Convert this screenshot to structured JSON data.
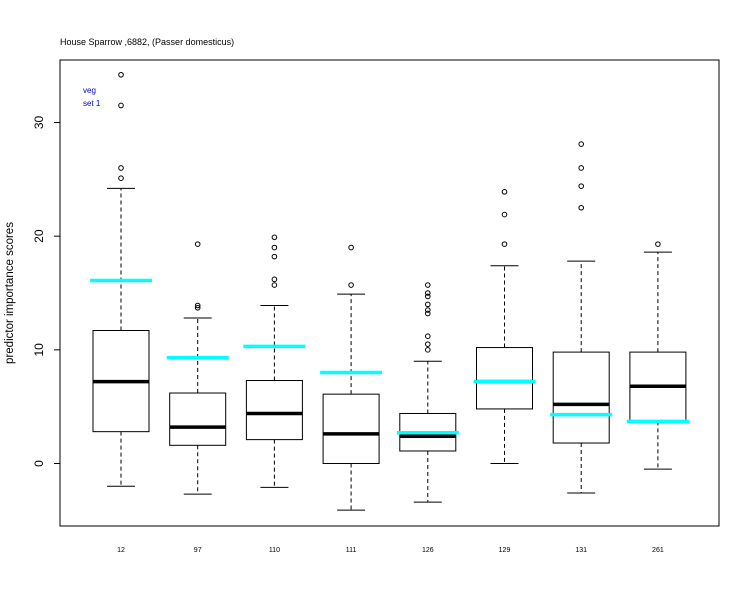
{
  "chart_data": {
    "type": "boxplot",
    "title": "House Sparrow ,6882, (Passer domesticus)",
    "xlabel": "",
    "ylabel": "predictor importance scores",
    "ylim": [
      -5.5,
      35.5
    ],
    "yticks": [
      0,
      10,
      20,
      30
    ],
    "legend": {
      "placement": "top-left",
      "lines": [
        "veg",
        "set 1"
      ],
      "color": "#0000cc"
    },
    "colors": {
      "median": "#000000",
      "reference": "#00ffff",
      "box": "#000000"
    },
    "categories": [
      "12",
      "97",
      "110",
      "111",
      "126",
      "129",
      "131",
      "261"
    ],
    "boxes": [
      {
        "label": "12",
        "whisker_low": -2.0,
        "q1": 2.8,
        "median": 7.2,
        "q3": 11.7,
        "whisker_high": 24.2,
        "outliers": [
          25.1,
          26.0,
          31.5,
          34.2
        ],
        "reference": 16.1
      },
      {
        "label": "97",
        "whisker_low": -2.7,
        "q1": 1.6,
        "median": 3.2,
        "q3": 6.2,
        "whisker_high": 12.8,
        "outliers": [
          13.7,
          13.9,
          19.3
        ],
        "reference": 9.3
      },
      {
        "label": "110",
        "whisker_low": -2.1,
        "q1": 2.1,
        "median": 4.4,
        "q3": 7.3,
        "whisker_high": 13.9,
        "outliers": [
          15.7,
          16.2,
          18.2,
          19.0,
          19.9
        ],
        "reference": 10.3
      },
      {
        "label": "111",
        "whisker_low": -4.1,
        "q1": 0.0,
        "median": 2.6,
        "q3": 6.1,
        "whisker_high": 14.9,
        "outliers": [
          15.7,
          19.0
        ],
        "reference": 8.0
      },
      {
        "label": "126",
        "whisker_low": -3.4,
        "q1": 1.1,
        "median": 2.4,
        "q3": 4.4,
        "whisker_high": 9.0,
        "outliers": [
          10.0,
          10.5,
          11.2,
          13.2,
          13.5,
          14.0,
          14.7,
          15.0,
          15.7
        ],
        "reference": 2.7
      },
      {
        "label": "129",
        "whisker_low": 0.0,
        "q1": 4.8,
        "median": 7.2,
        "q3": 10.2,
        "whisker_high": 17.4,
        "outliers": [
          19.3,
          21.9,
          23.9
        ],
        "reference": 7.2
      },
      {
        "label": "131",
        "whisker_low": -2.6,
        "q1": 1.8,
        "median": 5.2,
        "q3": 9.8,
        "whisker_high": 17.8,
        "outliers": [
          22.5,
          24.4,
          26.0,
          28.1
        ],
        "reference": 4.3
      },
      {
        "label": "261",
        "whisker_low": -0.5,
        "q1": 3.7,
        "median": 6.8,
        "q3": 9.8,
        "whisker_high": 18.6,
        "outliers": [
          19.3
        ],
        "reference": 3.7
      }
    ]
  }
}
